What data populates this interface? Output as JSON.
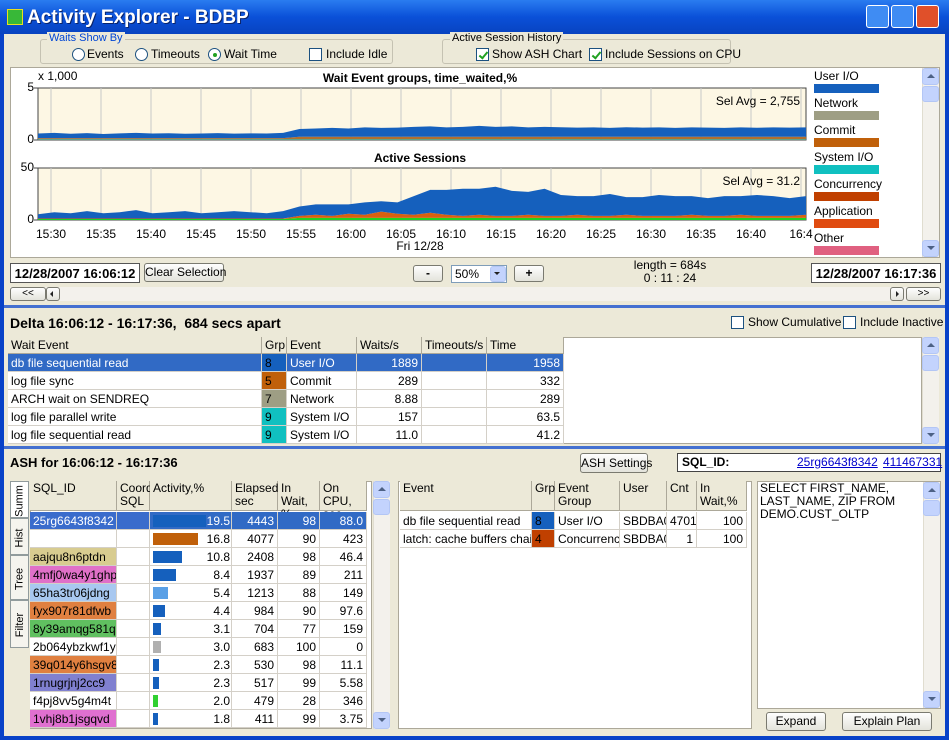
{
  "window": {
    "title": "Activity Explorer - BDBP"
  },
  "waits_show_by": {
    "label": "Waits Show By",
    "options": [
      "Events",
      "Timeouts",
      "Wait Time"
    ],
    "selected": 2,
    "include_idle": {
      "label": "Include Idle",
      "checked": false
    }
  },
  "ash_history": {
    "label": "Active Session History",
    "show_ash_chart": {
      "label": "Show ASH Chart",
      "checked": true
    },
    "include_cpu": {
      "label": "Include Sessions on CPU",
      "checked": true
    }
  },
  "charts": {
    "x_labels": [
      "15:30",
      "15:35",
      "15:40",
      "15:45",
      "15:50",
      "15:55",
      "16:00",
      "16:05",
      "16:10",
      "16:15",
      "16:20",
      "16:25",
      "16:30",
      "16:35",
      "16:40",
      "16:4"
    ],
    "x_sublabel": "Fri 12/28",
    "wait_chart": {
      "type": "area",
      "title": "Wait Event groups, time_waited,%",
      "multiplier": "x 1,000",
      "ylim": [
        0,
        5
      ],
      "yticks": [
        0,
        5
      ],
      "sel_avg": "Sel Avg = 2,755",
      "series": [
        {
          "color": "#10b8b8",
          "values": [
            0.06,
            0.06,
            0.06,
            0.06,
            0.06,
            0.06,
            0.06,
            0.06,
            0.06,
            0.06,
            0.06,
            0.06,
            0.06,
            0.06,
            0.06,
            0.06,
            0.06,
            0.06,
            0.06,
            0.06,
            0.06,
            0.06,
            0.06,
            0.06,
            0.06,
            0.06,
            0.06,
            0.06,
            0.06,
            0.06,
            0.06,
            0.06,
            0.06,
            0.06,
            0.06,
            0.06,
            0.06,
            0.06,
            0.06,
            0.06,
            0.06,
            0.06,
            0.06,
            0.06,
            0.06,
            0.06,
            0.06,
            0.06
          ]
        },
        {
          "color": "#b07030",
          "values": [
            0.12,
            0.12,
            0.12,
            0.12,
            0.12,
            0.12,
            0.12,
            0.12,
            0.12,
            0.12,
            0.12,
            0.12,
            0.12,
            0.12,
            0.12,
            0.12,
            0.25,
            0.25,
            0.25,
            0.25,
            0.25,
            0.25,
            0.25,
            0.25,
            0.25,
            0.25,
            0.25,
            0.25,
            0.25,
            0.25,
            0.25,
            0.25,
            0.25,
            0.25,
            0.25,
            0.25,
            0.25,
            0.25,
            0.25,
            0.25,
            0.25,
            0.25,
            0.25,
            0.25,
            0.25,
            0.25,
            0.25,
            0.25
          ]
        },
        {
          "color": "#1560bd",
          "values": [
            0.45,
            0.5,
            0.42,
            0.48,
            0.4,
            0.46,
            0.5,
            0.44,
            0.47,
            0.42,
            0.45,
            0.48,
            0.43,
            0.46,
            0.44,
            0.5,
            0.75,
            0.8,
            0.85,
            0.8,
            0.9,
            0.85,
            0.88,
            0.95,
            1.0,
            0.9,
            0.95,
            1.05,
            0.95,
            1.0,
            0.9,
            0.95,
            0.92,
            0.88,
            0.9,
            0.85,
            0.92,
            0.88,
            0.9,
            0.86,
            0.9,
            0.88,
            0.85,
            0.9,
            0.87,
            0.9,
            0.88,
            0.9
          ]
        }
      ]
    },
    "session_chart": {
      "type": "area",
      "title": "Active Sessions",
      "ylim": [
        0,
        50
      ],
      "yticks": [
        0,
        50
      ],
      "sel_avg": "Sel Avg = 31.2",
      "series": [
        {
          "color": "#20d020",
          "values": [
            1,
            1,
            1,
            1,
            1,
            1,
            1,
            1,
            1,
            1,
            1,
            1,
            1,
            1,
            1,
            1,
            2,
            2,
            2,
            2,
            2,
            2,
            2,
            2,
            2,
            2,
            2,
            2,
            2,
            2,
            2,
            2,
            2,
            2,
            2,
            2,
            2,
            2,
            2,
            2,
            2,
            2,
            2,
            2,
            2,
            2,
            2,
            2
          ]
        },
        {
          "color": "#d86010",
          "values": [
            0.5,
            0.5,
            0.5,
            0.5,
            0.5,
            0.5,
            0.5,
            0.5,
            0.5,
            0.5,
            0.5,
            0.5,
            0.5,
            0.5,
            0.5,
            0.5,
            2,
            3,
            2,
            4,
            3,
            6,
            4,
            3,
            5,
            3,
            2,
            3,
            2,
            2,
            3,
            2,
            2,
            3,
            2,
            2,
            3,
            2,
            2,
            2,
            3,
            2,
            2,
            3,
            2,
            2,
            2,
            3
          ]
        },
        {
          "color": "#1560bd",
          "values": [
            4,
            6,
            5,
            7,
            5,
            6,
            8,
            5,
            6,
            7,
            5,
            6,
            7,
            6,
            5,
            7,
            9,
            10,
            11,
            9,
            12,
            10,
            11,
            18,
            22,
            24,
            26,
            25,
            28,
            24,
            22,
            26,
            20,
            18,
            19,
            21,
            17,
            18,
            20,
            19,
            18,
            17,
            19,
            18,
            20,
            19,
            17,
            18
          ]
        }
      ]
    }
  },
  "legend": [
    {
      "name": "User I/O",
      "color": "#1560bd"
    },
    {
      "name": "Network",
      "color": "#9e9e84"
    },
    {
      "name": "Commit",
      "color": "#c0600a"
    },
    {
      "name": "System I/O",
      "color": "#10c0c0"
    },
    {
      "name": "Concurrency",
      "color": "#c04000"
    },
    {
      "name": "Application",
      "color": "#e04b10"
    },
    {
      "name": "Other",
      "color": "#e06080"
    }
  ],
  "controls": {
    "start": "12/28/2007 16:06:12",
    "clear": "Clear Selection",
    "minus": "-",
    "zoom": "50%",
    "plus": "+",
    "length": "length = 684s",
    "duration": "0 : 11 : 24",
    "end": "12/28/2007 16:17:36",
    "scroll_left": "<<",
    "scroll_right": ">>"
  },
  "delta": {
    "title": "Delta 16:06:12 - 16:17:36,  684 secs apart",
    "show_cumulative": {
      "label": "Show Cumulative",
      "checked": false
    },
    "include_inactive": {
      "label": "Include Inactive",
      "checked": false
    },
    "columns": [
      "Wait Event",
      "Grp",
      "Event Group",
      "Waits/s",
      "Timeouts/s",
      "Time Waited,%"
    ],
    "rows": [
      {
        "event": "db file sequential read",
        "grp": "8",
        "color": "#1560bd",
        "group": "User I/O",
        "waits": "1889",
        "time_waited": "1958"
      },
      {
        "event": "log file sync",
        "grp": "5",
        "color": "#c0600a",
        "group": "Commit",
        "waits": "289",
        "time_waited": "332"
      },
      {
        "event": "ARCH wait on SENDREQ",
        "grp": "7",
        "color": "#9e9e84",
        "group": "Network",
        "waits": "8.88",
        "time_waited": "289"
      },
      {
        "event": "log file parallel write",
        "grp": "9",
        "color": "#10c0c0",
        "group": "System I/O",
        "waits": "157",
        "time_waited": "63.5"
      },
      {
        "event": "log file sequential read",
        "grp": "9",
        "color": "#10c0c0",
        "group": "System I/O",
        "waits": "11.0",
        "time_waited": "41.2"
      }
    ],
    "selected": 0
  },
  "ash": {
    "title": "ASH for 16:06:12 - 16:17:36",
    "settings": "ASH Settings",
    "sql_id_label": "SQL_ID:",
    "sql_id": "25rg6643f8342",
    "hash": "411467331",
    "tabs": [
      "Summ",
      "Hist",
      "Tree",
      "Filter"
    ],
    "sql_columns": [
      "SQL_ID",
      "Coord\nSQL",
      "Activity,%",
      "Elapsed,\nsec",
      "In Wait,\n%",
      "On CPU,\nsec"
    ],
    "sql_rows": [
      {
        "sql_id": "25rg6643f8342",
        "sql_color": "#3a6ccc",
        "coord_color": "#3a6ccc",
        "activity": "19.5",
        "bar_color": "#1560bd",
        "elapsed": "4443",
        "in_wait": "98",
        "on_cpu": "88.0"
      },
      {
        "sql_id": null,
        "sql_color": "#ffffff",
        "coord_color": "#ffffff",
        "activity": "16.8",
        "bar_color": "#c0600a",
        "elapsed": "4077",
        "in_wait": "90",
        "on_cpu": "423"
      },
      {
        "sql_id": "aajqu8n6ptdn",
        "sql_color": "#d8cc90",
        "coord_color": "#ffffff",
        "activity": "10.8",
        "bar_color": "#1560bd",
        "elapsed": "2408",
        "in_wait": "98",
        "on_cpu": "46.4"
      },
      {
        "sql_id": "4mfj0wa4y1ghp",
        "sql_color": "#e070c8",
        "coord_color": "#ffffff",
        "activity": "8.4",
        "bar_color": "#1560bd",
        "elapsed": "1937",
        "in_wait": "89",
        "on_cpu": "211"
      },
      {
        "sql_id": "65ha3tr06jdng",
        "sql_color": "#a8c8f0",
        "coord_color": "#ffffff",
        "activity": "5.4",
        "bar_color": "#5aa0e6",
        "elapsed": "1213",
        "in_wait": "88",
        "on_cpu": "149"
      },
      {
        "sql_id": "fyx907r81dfwb",
        "sql_color": "#e08040",
        "coord_color": "#ffffff",
        "activity": "4.4",
        "bar_color": "#1560bd",
        "elapsed": "984",
        "in_wait": "90",
        "on_cpu": "97.6"
      },
      {
        "sql_id": "8y39amqg581qp",
        "sql_color": "#60c060",
        "coord_color": "#ffffff",
        "activity": "3.1",
        "bar_color": "#1560bd",
        "elapsed": "704",
        "in_wait": "77",
        "on_cpu": "159"
      },
      {
        "sql_id": "2b064ybzkwf1y",
        "sql_color": "#ffffff",
        "coord_color": "#ffffff",
        "activity": "3.0",
        "bar_color": "#b0b0b0",
        "elapsed": "683",
        "in_wait": "100",
        "on_cpu": "0"
      },
      {
        "sql_id": "39q014y6hsgv8",
        "sql_color": "#e08040",
        "coord_color": "#ffffff",
        "activity": "2.3",
        "bar_color": "#1560bd",
        "elapsed": "530",
        "in_wait": "98",
        "on_cpu": "11.1"
      },
      {
        "sql_id": "1rnugrjnj2cc9",
        "sql_color": "#8080d0",
        "coord_color": "#ffffff",
        "activity": "2.3",
        "bar_color": "#1560bd",
        "elapsed": "517",
        "in_wait": "99",
        "on_cpu": "5.58"
      },
      {
        "sql_id": "f4pj8vv5g4m4t",
        "sql_color": "#ffffff",
        "coord_color": "#ffffff",
        "activity": "2.0",
        "bar_color": "#30d030",
        "elapsed": "479",
        "in_wait": "28",
        "on_cpu": "346"
      },
      {
        "sql_id": "1vhj8b1jsgqvd",
        "sql_color": "#e070d0",
        "coord_color": "#ffffff",
        "activity": "1.8",
        "bar_color": "#1560bd",
        "elapsed": "411",
        "in_wait": "99",
        "on_cpu": "3.75"
      }
    ],
    "event_columns": [
      "Event",
      "Grp",
      "Event\nGroup",
      "User",
      "Cnt",
      "In Wait,%"
    ],
    "event_rows": [
      {
        "event": "db file sequential read",
        "grp": "8",
        "color": "#1560bd",
        "group": "User I/O",
        "user": "SBDBA0",
        "cnt": "4701",
        "in_wait": "100"
      },
      {
        "event": "latch: cache buffers chains",
        "grp": "4",
        "color": "#c04000",
        "group": "Concurrency",
        "user": "SBDBA0",
        "cnt": "1",
        "in_wait": "100"
      }
    ],
    "sql_text": "SELECT FIRST_NAME,\nLAST_NAME, ZIP FROM\nDEMO.CUST_OLTP",
    "expand": "Expand",
    "explain": "Explain Plan"
  }
}
